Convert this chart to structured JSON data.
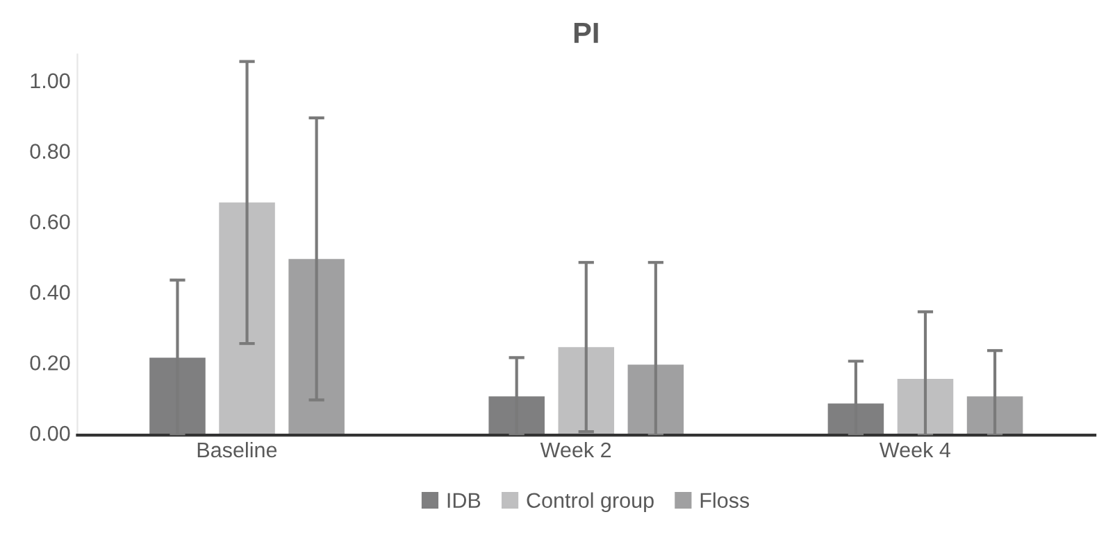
{
  "chart_data": {
    "type": "bar",
    "title": "PI",
    "categories": [
      "Baseline",
      "Week 2",
      "Week 4"
    ],
    "series": [
      {
        "name": "IDB",
        "color": "#7f7f80",
        "values": [
          0.22,
          0.11,
          0.09
        ],
        "errors": [
          [
            0.0,
            0.44
          ],
          [
            0.0,
            0.22
          ],
          [
            0.0,
            0.21
          ]
        ]
      },
      {
        "name": "Control group",
        "color": "#bfbfc0",
        "values": [
          0.66,
          0.25,
          0.16
        ],
        "errors": [
          [
            0.26,
            1.06
          ],
          [
            0.01,
            0.49
          ],
          [
            0.0,
            0.35
          ]
        ]
      },
      {
        "name": "Floss",
        "color": "#a0a0a1",
        "values": [
          0.5,
          0.2,
          0.11
        ],
        "errors": [
          [
            0.1,
            0.9
          ],
          [
            0.0,
            0.49
          ],
          [
            0.0,
            0.24
          ]
        ]
      }
    ],
    "yticks": [
      {
        "value": 0,
        "label": "0.00"
      },
      {
        "value": 0.2,
        "label": "0.20"
      },
      {
        "value": 0.4,
        "label": "0.40"
      },
      {
        "value": 0.6,
        "label": "0.60"
      },
      {
        "value": 0.8,
        "label": "0.80"
      },
      {
        "value": 1.0,
        "label": "1.00"
      }
    ],
    "ylim": [
      0,
      1.08
    ],
    "grid": false,
    "legend": "bottom"
  }
}
